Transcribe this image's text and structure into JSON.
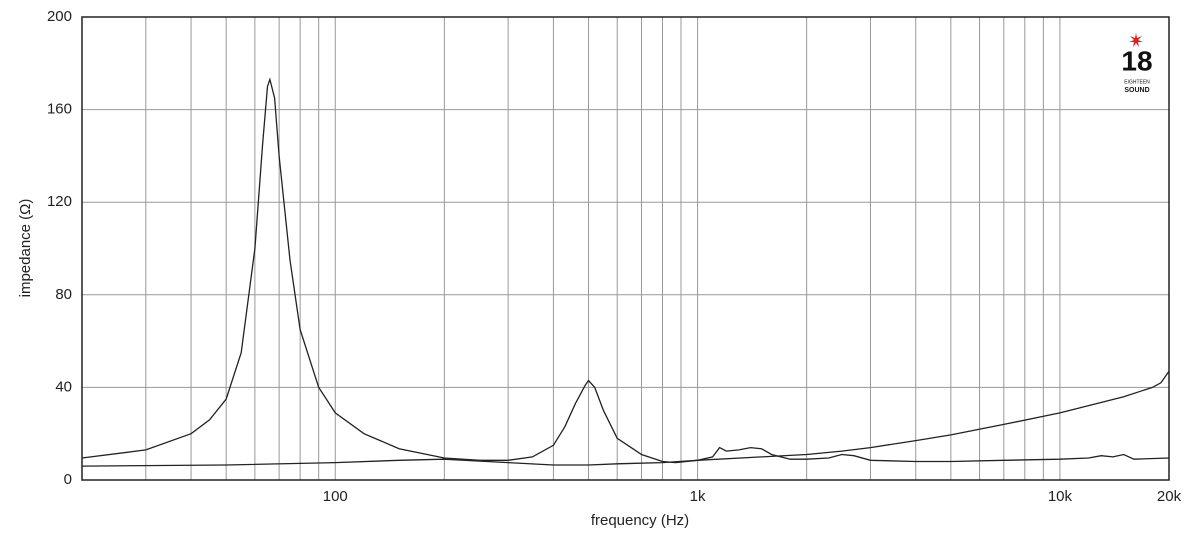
{
  "chart_data": {
    "type": "line",
    "xlabel": "frequency (Hz)",
    "ylabel": "impedance (Ω)",
    "xscale": "log",
    "grid": true,
    "xlim": [
      20,
      20000
    ],
    "ylim": [
      0,
      200
    ],
    "xticks": [
      100,
      {
        "value": 1000,
        "label": "1k"
      },
      {
        "value": 10000,
        "label": "10k"
      },
      {
        "value": 20000,
        "label": "20k"
      }
    ],
    "xminorticks": [
      30,
      40,
      50,
      60,
      70,
      80,
      90,
      200,
      300,
      400,
      500,
      600,
      700,
      800,
      900,
      2000,
      3000,
      4000,
      5000,
      6000,
      7000,
      8000,
      9000
    ],
    "yticks": [
      0,
      40,
      80,
      120,
      160,
      200
    ],
    "logo": {
      "number": "18",
      "line1": "EIGHTEEN",
      "line2": "SOUND",
      "color": "#e0201c"
    },
    "series": [
      {
        "color": "#222222",
        "x": [
          20,
          30,
          40,
          45,
          50,
          55,
          60,
          63,
          65,
          66,
          68,
          70,
          75,
          80,
          90,
          100,
          120,
          150,
          200,
          250,
          300,
          350,
          400,
          430,
          460,
          490,
          500,
          520,
          550,
          600,
          700,
          800,
          870,
          1000,
          1100,
          1150,
          1200,
          1300,
          1400,
          1500,
          1600,
          1800,
          2000,
          2300,
          2500,
          2700,
          3000,
          4000,
          5000,
          7000,
          10000,
          12000,
          13000,
          14000,
          15000,
          16000,
          20000
        ],
        "values": [
          9.5,
          13,
          20,
          26,
          35,
          55,
          100,
          145,
          170,
          173,
          165,
          140,
          95,
          65,
          40,
          29,
          20,
          13.5,
          9.5,
          8.5,
          8.5,
          10,
          15,
          23,
          33,
          41,
          43,
          40,
          30,
          18,
          11,
          8,
          7.5,
          8.5,
          10,
          14,
          12.5,
          13,
          14,
          13.5,
          11,
          9,
          9,
          9.5,
          11,
          10.5,
          8.5,
          8,
          8,
          8.5,
          9,
          9.5,
          10.5,
          10,
          11,
          9,
          9.5
        ]
      },
      {
        "color": "#222222",
        "x": [
          20,
          50,
          100,
          150,
          200,
          300,
          400,
          500,
          600,
          800,
          1000,
          1500,
          2000,
          2500,
          3000,
          4000,
          5000,
          7000,
          10000,
          15000,
          18000,
          19000,
          20000
        ],
        "values": [
          6,
          6.5,
          7.5,
          8.5,
          9,
          7.5,
          6.5,
          6.5,
          7,
          7.5,
          8.5,
          10,
          11,
          12.5,
          14,
          17,
          19.5,
          24,
          29,
          36,
          40,
          42,
          47
        ]
      }
    ]
  }
}
